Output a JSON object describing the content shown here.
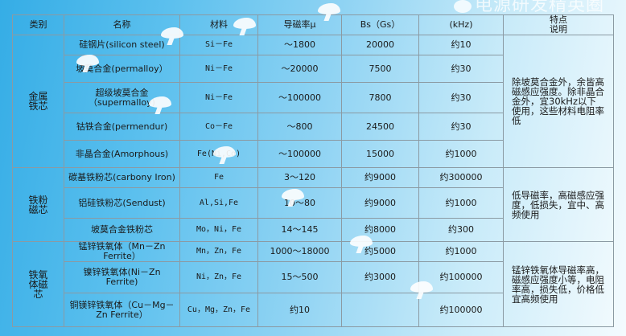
{
  "headers": [
    "类别",
    "名称",
    "材料",
    "导磁率μ",
    "Bs（Gs）",
    "(kHz)",
    "特点\n说明"
  ],
  "groups": [
    {
      "category": "金属\n铁芯",
      "note": "除坡莫合金外，余皆高磁感应强度。除非晶合金外，宜30kHz以下使用，这些材料电阻率低",
      "rows": [
        {
          "name": "硅钢片(silicon steel)",
          "material": "Si－Fe",
          "mu": "～1800",
          "bs": "20000",
          "freq": "约10"
        },
        {
          "name": "坡莫合金(permalloy）",
          "material": "Ni－Fe",
          "mu": "～20000",
          "bs": "7500",
          "freq": "约30"
        },
        {
          "name": "超级坡莫合金（supermalloy)",
          "material": "Ni－Fe",
          "mu": "～100000",
          "bs": "7800",
          "freq": "约30"
        },
        {
          "name": "钴铁合金(permendur)",
          "material": "Co－Fe",
          "mu": "～800",
          "bs": "24500",
          "freq": "约30"
        },
        {
          "name": "非晶合金(Amorphous)",
          "material": "Fe(Ni,Co)",
          "mu": "～100000",
          "bs": "15000",
          "freq": "约1000"
        }
      ]
    },
    {
      "category": "铁粉\n磁芯",
      "note": "低导磁率，高磁感应强度，低损失，宜中、高频使用",
      "rows": [
        {
          "name": "碳基铁粉芯(carbony Iron)",
          "material": "Fe",
          "mu": "3～120",
          "bs": "约9000",
          "freq": "约300000"
        },
        {
          "name": "铝硅铁粉芯(Sendust)",
          "material": "Al,Si,Fe",
          "mu": "10～80",
          "bs": "约9000",
          "freq": "约1000"
        },
        {
          "name": "坡莫合金铁粉芯",
          "material": "Mo，Ni，Fe",
          "mu": "14～145",
          "bs": "约8000",
          "freq": "约300"
        }
      ]
    },
    {
      "category": "铁氧\n体磁\n芯",
      "note": "锰锌铁氧体导磁率高，磁感应强度小等，电阻率高，损失低，价格低宜高频使用",
      "rows": [
        {
          "name": "锰锌铁氧体（Mn－Zn Ferrite）",
          "material": "Mn，Zn，Fe",
          "mu": "1000～18000",
          "bs": "约5000",
          "freq": "约1000"
        },
        {
          "name": "镍锌铁氧体(Ni－Zn Ferrite)",
          "material": "Ni，Zn，Fe",
          "mu": "15～500",
          "bs": "约3000",
          "freq": "约100000"
        },
        {
          "name": "铜镁锌铁氧体（Cu－Mg－Zn Ferrite）",
          "material": "Cu，Mg，Zn，Fe",
          "mu": "约10",
          "bs": "",
          "freq": "约100000"
        }
      ]
    }
  ],
  "watermark": "电源研发精英圈"
}
